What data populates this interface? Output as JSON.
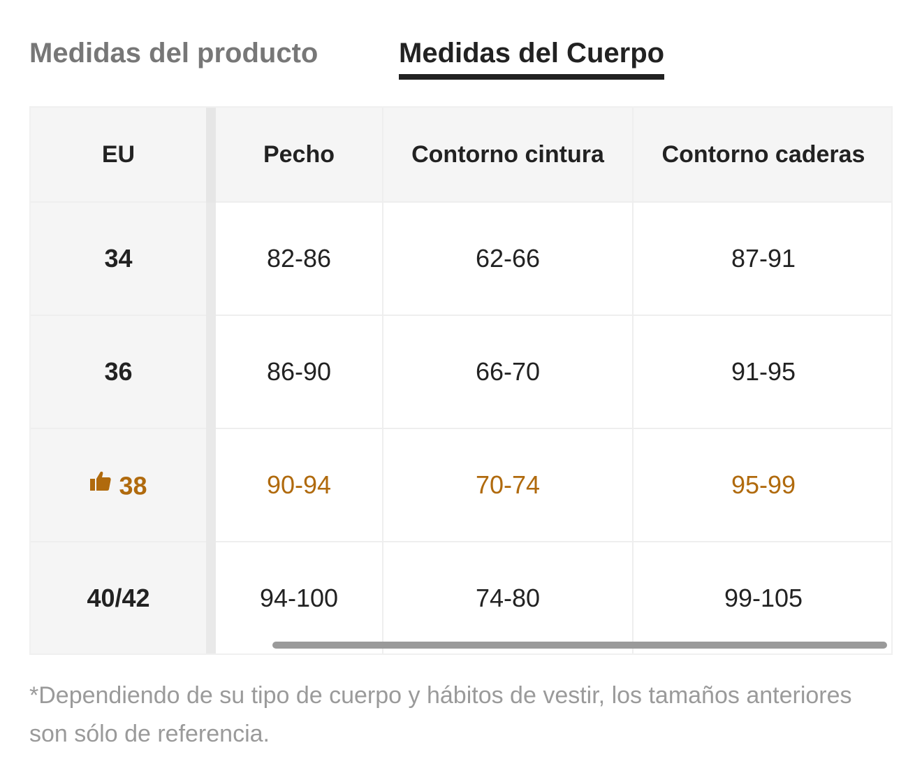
{
  "tabs": {
    "product": "Medidas del producto",
    "body": "Medidas del Cuerpo"
  },
  "table": {
    "headers": [
      "EU",
      "Pecho",
      "Contorno cintura",
      "Contorno caderas"
    ],
    "rows": [
      [
        "34",
        "82-86",
        "62-66",
        "87-91"
      ],
      [
        "36",
        "86-90",
        "66-70",
        "91-95"
      ],
      [
        "38",
        "90-94",
        "70-74",
        "95-99"
      ],
      [
        "40/42",
        "94-100",
        "74-80",
        "99-105"
      ]
    ],
    "recommended_row": 2,
    "highlight_color": "#b06a0d",
    "recommended_icon": "thumbs-up-icon"
  },
  "footnote": "*Dependiendo de su tipo de cuerpo y hábitos de vestir, los tamaños anteriores son sólo de referencia."
}
